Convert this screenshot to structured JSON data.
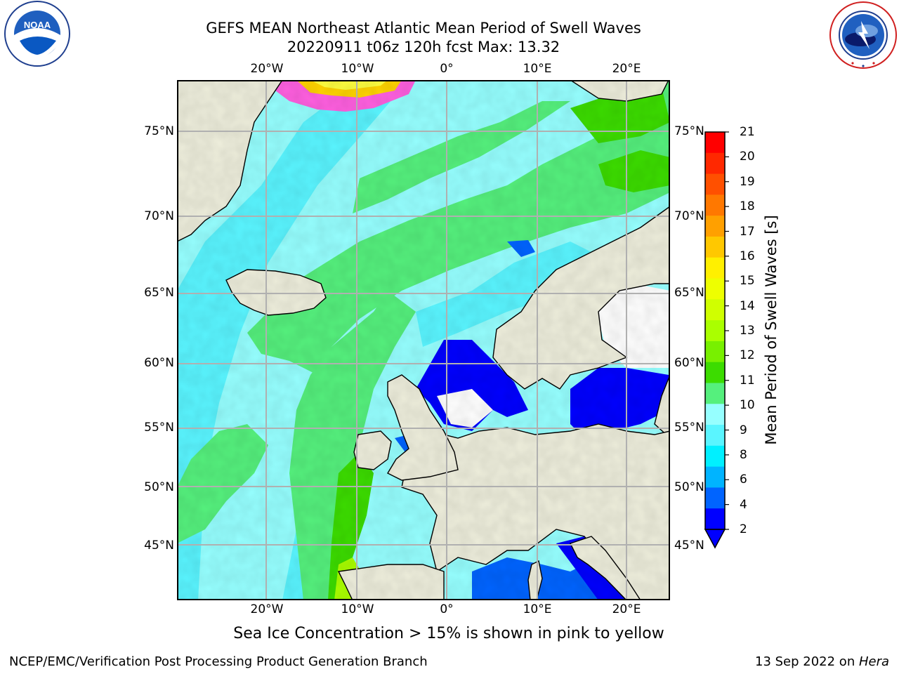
{
  "title": {
    "line1": "GEFS MEAN Northeast Atlantic Mean Period of Swell Waves",
    "line2": "20220911 t06z 120h fcst   Max: 13.32"
  },
  "logos": {
    "left_icon": "noaa-logo",
    "right_icon": "nws-logo",
    "left_text": "NATIONAL OCEANIC AND ATMOSPHERIC ADMINISTRATION · U.S. DEPARTMENT OF COMMERCE",
    "left_center": "NOAA",
    "right_text": "NATIONAL WEATHER SERVICE"
  },
  "map": {
    "lon_ticks": [
      "20°W",
      "10°W",
      "0°",
      "10°E",
      "20°E"
    ],
    "lat_ticks": [
      "75°N",
      "70°N",
      "65°N",
      "60°N",
      "55°N",
      "50°N",
      "45°N"
    ],
    "colors": {
      "land": "#eeeedc",
      "coast": "#000000",
      "grid": "#b0b0b0",
      "nodata": "#ffffff"
    }
  },
  "colorbar": {
    "title": "Mean Period of Swell Waves [s]",
    "labels": [
      "21",
      "20",
      "19",
      "18",
      "17",
      "16",
      "15",
      "14",
      "13",
      "12",
      "11",
      "10",
      "9",
      "8",
      "6",
      "4",
      "2"
    ],
    "colors_top_to_bottom": [
      "#ff0000",
      "#ff2800",
      "#ff5000",
      "#ff7800",
      "#ffa000",
      "#ffc800",
      "#fff000",
      "#eeff00",
      "#d0ff00",
      "#aaff00",
      "#78f000",
      "#3cdc00",
      "#55f07d",
      "#96ffff",
      "#5af5ff",
      "#00f0ff",
      "#00b4ff",
      "#0064ff",
      "#0000ff"
    ],
    "extend_color": "#0000ff"
  },
  "note": "Sea Ice Concentration > 15% is shown in pink to yellow",
  "footer": {
    "left": "NCEP/EMC/Verification Post Processing Product Generation Branch",
    "right_prefix": "13 Sep 2022 on ",
    "right_host": "Hera"
  }
}
